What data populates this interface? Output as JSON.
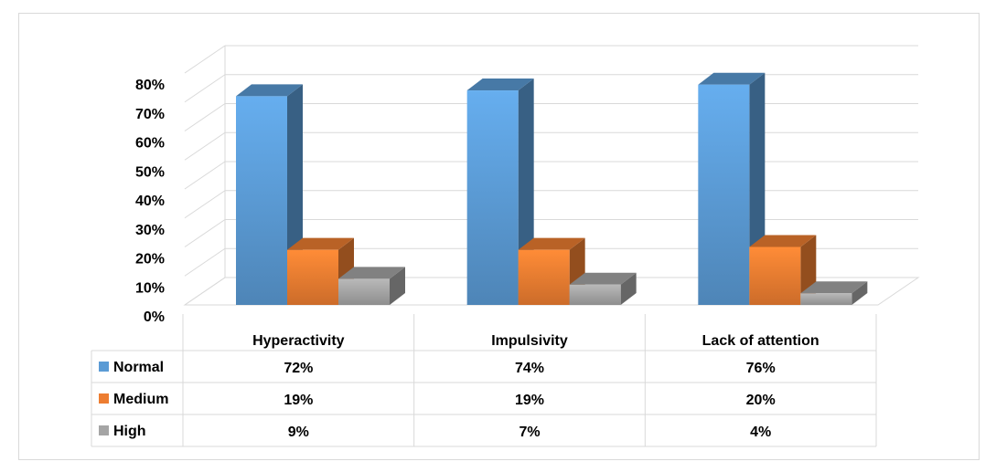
{
  "chart_data": {
    "type": "bar",
    "subtype": "3d-clustered-column-with-data-table",
    "categories": [
      "Hyperactivity",
      "Impulsivity",
      "Lack of attention"
    ],
    "series": [
      {
        "name": "Normal",
        "values": [
          72,
          74,
          76
        ],
        "labels": [
          "72%",
          "74%",
          "76%"
        ],
        "color": "#5B9BD5"
      },
      {
        "name": "Medium",
        "values": [
          19,
          19,
          20
        ],
        "labels": [
          "19%",
          "19%",
          "20%"
        ],
        "color": "#ED7D31"
      },
      {
        "name": "High",
        "values": [
          9,
          7,
          4
        ],
        "labels": [
          "9%",
          "7%",
          "4%"
        ],
        "color": "#A5A5A5"
      }
    ],
    "y_ticks": [
      "0%",
      "10%",
      "20%",
      "30%",
      "40%",
      "50%",
      "60%",
      "70%",
      "80%"
    ],
    "ylim": [
      0,
      80
    ],
    "grid": true,
    "legend": "data-table-left"
  }
}
